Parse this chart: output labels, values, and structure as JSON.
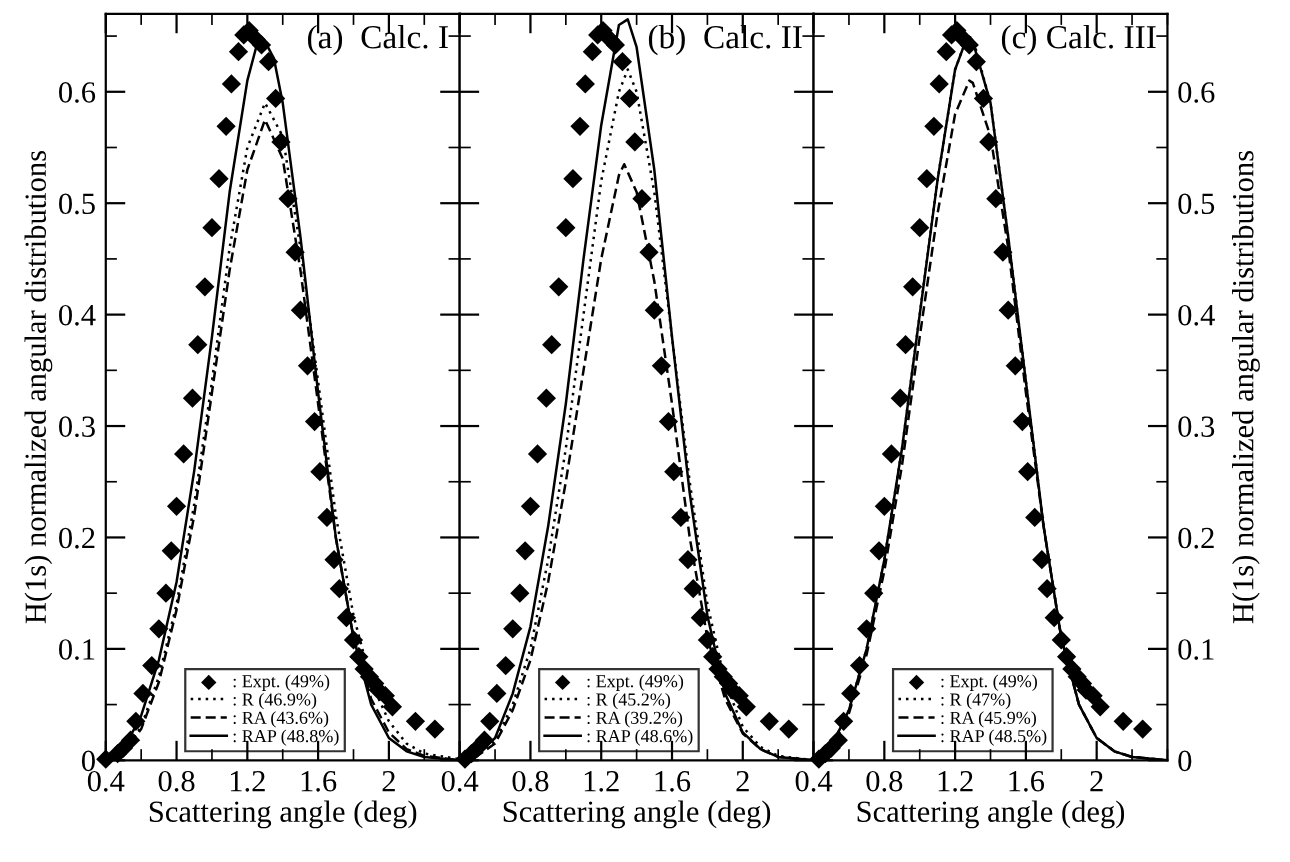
{
  "chart_data": [
    {
      "type": "line",
      "annotations": [
        "(a)  Calc. I"
      ],
      "xlabel": "Scattering angle (deg)",
      "ylabel": "H(1s) normalized angular distributions",
      "xlim": [
        0.4,
        2.4
      ],
      "ylim": [
        0,
        0.67
      ],
      "xticks": [
        0.4,
        0.8,
        1.2,
        1.6,
        2
      ],
      "yticks": [
        0,
        0.1,
        0.2,
        0.3,
        0.4,
        0.5,
        0.6
      ],
      "legend": "bottom",
      "grid": false,
      "series": [
        {
          "name": ": Expt. (49%)",
          "type": "scatter",
          "marker": "diamond",
          "color": "#000000",
          "x": [
            0.4,
            0.467,
            0.5,
            0.54,
            0.57,
            0.61,
            0.66,
            0.7,
            0.74,
            0.77,
            0.8,
            0.84,
            0.89,
            0.92,
            0.96,
            1.0,
            1.04,
            1.08,
            1.11,
            1.15,
            1.18,
            1.21,
            1.25,
            1.28,
            1.32,
            1.36,
            1.39,
            1.43,
            1.47,
            1.5,
            1.54,
            1.58,
            1.61,
            1.65,
            1.69,
            1.72,
            1.76,
            1.8,
            1.83,
            1.86,
            1.89,
            1.92,
            1.94,
            1.98,
            2.02,
            2.15,
            2.26
          ],
          "values": [
            0.001,
            0.006,
            0.011,
            0.018,
            0.035,
            0.06,
            0.085,
            0.118,
            0.15,
            0.188,
            0.228,
            0.275,
            0.325,
            0.373,
            0.425,
            0.478,
            0.522,
            0.569,
            0.607,
            0.636,
            0.651,
            0.655,
            0.647,
            0.642,
            0.627,
            0.594,
            0.555,
            0.504,
            0.456,
            0.404,
            0.354,
            0.304,
            0.259,
            0.218,
            0.18,
            0.154,
            0.128,
            0.108,
            0.093,
            0.082,
            0.075,
            0.069,
            0.063,
            0.058,
            0.048,
            0.035,
            0.028
          ]
        },
        {
          "name": ": R (46.9%)",
          "type": "line",
          "line_style": "dotted",
          "color": "#000000",
          "x": [
            0.4,
            0.5,
            0.6,
            0.7,
            0.8,
            0.9,
            1.0,
            1.1,
            1.2,
            1.3,
            1.4,
            1.5,
            1.6,
            1.7,
            1.8,
            1.9,
            2.0,
            2.1,
            2.2,
            2.4
          ],
          "values": [
            0,
            0.008,
            0.03,
            0.075,
            0.14,
            0.23,
            0.34,
            0.46,
            0.55,
            0.59,
            0.56,
            0.46,
            0.34,
            0.22,
            0.13,
            0.07,
            0.035,
            0.015,
            0.006,
            0.001
          ]
        },
        {
          "name": ": RA (43.6%)",
          "type": "line",
          "line_style": "dashed",
          "color": "#000000",
          "x": [
            0.4,
            0.5,
            0.6,
            0.7,
            0.8,
            0.9,
            1.0,
            1.1,
            1.2,
            1.3,
            1.4,
            1.5,
            1.6,
            1.7,
            1.8,
            1.9,
            2.0,
            2.1,
            2.2,
            2.4
          ],
          "values": [
            0,
            0.007,
            0.028,
            0.07,
            0.135,
            0.22,
            0.33,
            0.44,
            0.53,
            0.575,
            0.54,
            0.44,
            0.32,
            0.2,
            0.11,
            0.055,
            0.025,
            0.01,
            0.004,
            0
          ]
        },
        {
          "name": ": RAP (48.8%)",
          "type": "line",
          "line_style": "solid",
          "color": "#000000",
          "x": [
            0.4,
            0.5,
            0.6,
            0.7,
            0.8,
            0.9,
            1.0,
            1.1,
            1.2,
            1.25,
            1.3,
            1.35,
            1.4,
            1.5,
            1.6,
            1.7,
            1.8,
            1.9,
            2.0,
            2.1,
            2.2,
            2.4
          ],
          "values": [
            0,
            0.01,
            0.04,
            0.09,
            0.16,
            0.26,
            0.38,
            0.51,
            0.61,
            0.64,
            0.645,
            0.63,
            0.59,
            0.47,
            0.33,
            0.2,
            0.11,
            0.05,
            0.02,
            0.008,
            0.003,
            0
          ]
        }
      ]
    },
    {
      "type": "line",
      "annotations": [
        "(b)  Calc. II"
      ],
      "xlabel": "Scattering angle (deg)",
      "xlim": [
        0.4,
        2.4
      ],
      "ylim": [
        0,
        0.67
      ],
      "xticks": [
        0.4,
        0.8,
        1.2,
        1.6,
        2
      ],
      "yticks": [
        0,
        0.1,
        0.2,
        0.3,
        0.4,
        0.5,
        0.6
      ],
      "tick_labels": "x",
      "legend": "bottom",
      "grid": false,
      "series": [
        {
          "name": ": Expt. (49%)",
          "type": "scatter",
          "marker": "diamond",
          "color": "#000000",
          "x": [
            0.43,
            0.467,
            0.5,
            0.54,
            0.57,
            0.61,
            0.66,
            0.7,
            0.74,
            0.77,
            0.8,
            0.84,
            0.89,
            0.92,
            0.96,
            1.0,
            1.04,
            1.08,
            1.11,
            1.15,
            1.18,
            1.21,
            1.25,
            1.28,
            1.32,
            1.36,
            1.39,
            1.43,
            1.47,
            1.5,
            1.54,
            1.58,
            1.61,
            1.65,
            1.69,
            1.72,
            1.76,
            1.8,
            1.83,
            1.86,
            1.89,
            1.92,
            1.94,
            1.98,
            2.02,
            2.15,
            2.26
          ],
          "values": [
            0.001,
            0.006,
            0.011,
            0.018,
            0.035,
            0.06,
            0.085,
            0.118,
            0.15,
            0.188,
            0.228,
            0.275,
            0.325,
            0.373,
            0.425,
            0.478,
            0.522,
            0.569,
            0.607,
            0.636,
            0.651,
            0.655,
            0.647,
            0.642,
            0.627,
            0.594,
            0.555,
            0.504,
            0.456,
            0.404,
            0.354,
            0.304,
            0.259,
            0.218,
            0.18,
            0.154,
            0.128,
            0.108,
            0.093,
            0.082,
            0.075,
            0.069,
            0.063,
            0.058,
            0.048,
            0.035,
            0.028
          ]
        },
        {
          "name": ": R (45.2%)",
          "type": "line",
          "line_style": "dotted",
          "color": "#000000",
          "x": [
            0.4,
            0.5,
            0.6,
            0.7,
            0.8,
            0.9,
            1.0,
            1.1,
            1.2,
            1.3,
            1.35,
            1.4,
            1.5,
            1.6,
            1.7,
            1.8,
            1.9,
            2.0,
            2.1,
            2.2,
            2.4
          ],
          "values": [
            0,
            0.004,
            0.017,
            0.05,
            0.1,
            0.18,
            0.28,
            0.4,
            0.52,
            0.6,
            0.62,
            0.6,
            0.51,
            0.38,
            0.25,
            0.14,
            0.07,
            0.03,
            0.012,
            0.004,
            0
          ]
        },
        {
          "name": ": RA (39.2%)",
          "type": "line",
          "line_style": "dashed",
          "color": "#000000",
          "x": [
            0.4,
            0.5,
            0.6,
            0.7,
            0.8,
            0.9,
            1.0,
            1.1,
            1.2,
            1.3,
            1.33,
            1.4,
            1.5,
            1.6,
            1.7,
            1.8,
            1.9,
            2.0,
            2.1,
            2.2,
            2.4
          ],
          "values": [
            0,
            0.004,
            0.015,
            0.045,
            0.09,
            0.16,
            0.25,
            0.35,
            0.45,
            0.525,
            0.535,
            0.51,
            0.43,
            0.32,
            0.2,
            0.11,
            0.055,
            0.024,
            0.01,
            0.003,
            0
          ]
        },
        {
          "name": ": RAP (48.6%)",
          "type": "line",
          "line_style": "solid",
          "color": "#000000",
          "x": [
            0.4,
            0.5,
            0.6,
            0.7,
            0.8,
            0.9,
            1.0,
            1.1,
            1.2,
            1.3,
            1.35,
            1.4,
            1.5,
            1.6,
            1.7,
            1.8,
            1.9,
            2.0,
            2.1,
            2.2,
            2.4
          ],
          "values": [
            0,
            0.005,
            0.02,
            0.06,
            0.12,
            0.21,
            0.32,
            0.45,
            0.57,
            0.66,
            0.665,
            0.64,
            0.53,
            0.38,
            0.24,
            0.13,
            0.06,
            0.025,
            0.01,
            0.003,
            0
          ]
        }
      ]
    },
    {
      "type": "line",
      "annotations": [
        "(c) Calc. III"
      ],
      "xlabel": "Scattering angle (deg)",
      "ylabel": "H(1s) normalized angular distributions",
      "xlim": [
        0.4,
        2.4
      ],
      "ylim": [
        0,
        0.67
      ],
      "xticks": [
        0.4,
        0.8,
        1.2,
        1.6,
        2
      ],
      "yticks": [
        0,
        0.1,
        0.2,
        0.3,
        0.4,
        0.5,
        0.6
      ],
      "legend": "bottom",
      "grid": false,
      "series": [
        {
          "name": ": Expt. (49%)",
          "type": "scatter",
          "marker": "diamond",
          "color": "#000000",
          "x": [
            0.43,
            0.467,
            0.5,
            0.54,
            0.57,
            0.61,
            0.66,
            0.7,
            0.74,
            0.77,
            0.8,
            0.84,
            0.89,
            0.92,
            0.96,
            1.0,
            1.04,
            1.08,
            1.11,
            1.15,
            1.18,
            1.21,
            1.25,
            1.28,
            1.32,
            1.36,
            1.39,
            1.43,
            1.47,
            1.5,
            1.54,
            1.58,
            1.61,
            1.65,
            1.69,
            1.72,
            1.76,
            1.8,
            1.83,
            1.86,
            1.89,
            1.92,
            1.94,
            1.98,
            2.02,
            2.15,
            2.26
          ],
          "values": [
            0.001,
            0.006,
            0.011,
            0.018,
            0.035,
            0.06,
            0.085,
            0.118,
            0.15,
            0.188,
            0.228,
            0.275,
            0.325,
            0.373,
            0.425,
            0.478,
            0.522,
            0.569,
            0.607,
            0.636,
            0.651,
            0.655,
            0.647,
            0.642,
            0.627,
            0.594,
            0.555,
            0.504,
            0.456,
            0.404,
            0.354,
            0.304,
            0.259,
            0.218,
            0.18,
            0.154,
            0.128,
            0.108,
            0.093,
            0.082,
            0.075,
            0.069,
            0.063,
            0.058,
            0.048,
            0.035,
            0.028
          ]
        },
        {
          "name": ": R (47%)",
          "type": "line",
          "line_style": "dotted",
          "color": "#000000",
          "x": [
            0.4,
            0.5,
            0.6,
            0.7,
            0.8,
            0.9,
            1.0,
            1.1,
            1.2,
            1.27,
            1.3,
            1.4,
            1.5,
            1.6,
            1.7,
            1.8,
            1.9,
            2.0,
            2.1,
            2.2,
            2.4
          ],
          "values": [
            0,
            0.012,
            0.045,
            0.1,
            0.18,
            0.28,
            0.4,
            0.52,
            0.62,
            0.65,
            0.648,
            0.59,
            0.47,
            0.34,
            0.21,
            0.11,
            0.05,
            0.02,
            0.008,
            0.003,
            0
          ]
        },
        {
          "name": ": RA (45.9%)",
          "type": "line",
          "line_style": "dashed",
          "color": "#000000",
          "x": [
            0.4,
            0.5,
            0.6,
            0.7,
            0.8,
            0.9,
            1.0,
            1.1,
            1.2,
            1.28,
            1.3,
            1.4,
            1.5,
            1.6,
            1.7,
            1.8,
            1.9,
            2.0,
            2.1,
            2.2,
            2.4
          ],
          "values": [
            0,
            0.011,
            0.042,
            0.095,
            0.17,
            0.265,
            0.38,
            0.49,
            0.58,
            0.61,
            0.608,
            0.56,
            0.46,
            0.33,
            0.21,
            0.11,
            0.05,
            0.02,
            0.008,
            0.003,
            0
          ]
        },
        {
          "name": ": RAP (48.5%)",
          "type": "line",
          "line_style": "solid",
          "color": "#000000",
          "x": [
            0.4,
            0.5,
            0.6,
            0.7,
            0.8,
            0.9,
            1.0,
            1.1,
            1.2,
            1.27,
            1.3,
            1.4,
            1.5,
            1.6,
            1.7,
            1.8,
            1.9,
            2.0,
            2.1,
            2.2,
            2.4
          ],
          "values": [
            0,
            0.012,
            0.045,
            0.1,
            0.18,
            0.28,
            0.4,
            0.52,
            0.62,
            0.65,
            0.645,
            0.59,
            0.47,
            0.34,
            0.21,
            0.11,
            0.05,
            0.02,
            0.008,
            0.003,
            0
          ]
        }
      ]
    }
  ]
}
